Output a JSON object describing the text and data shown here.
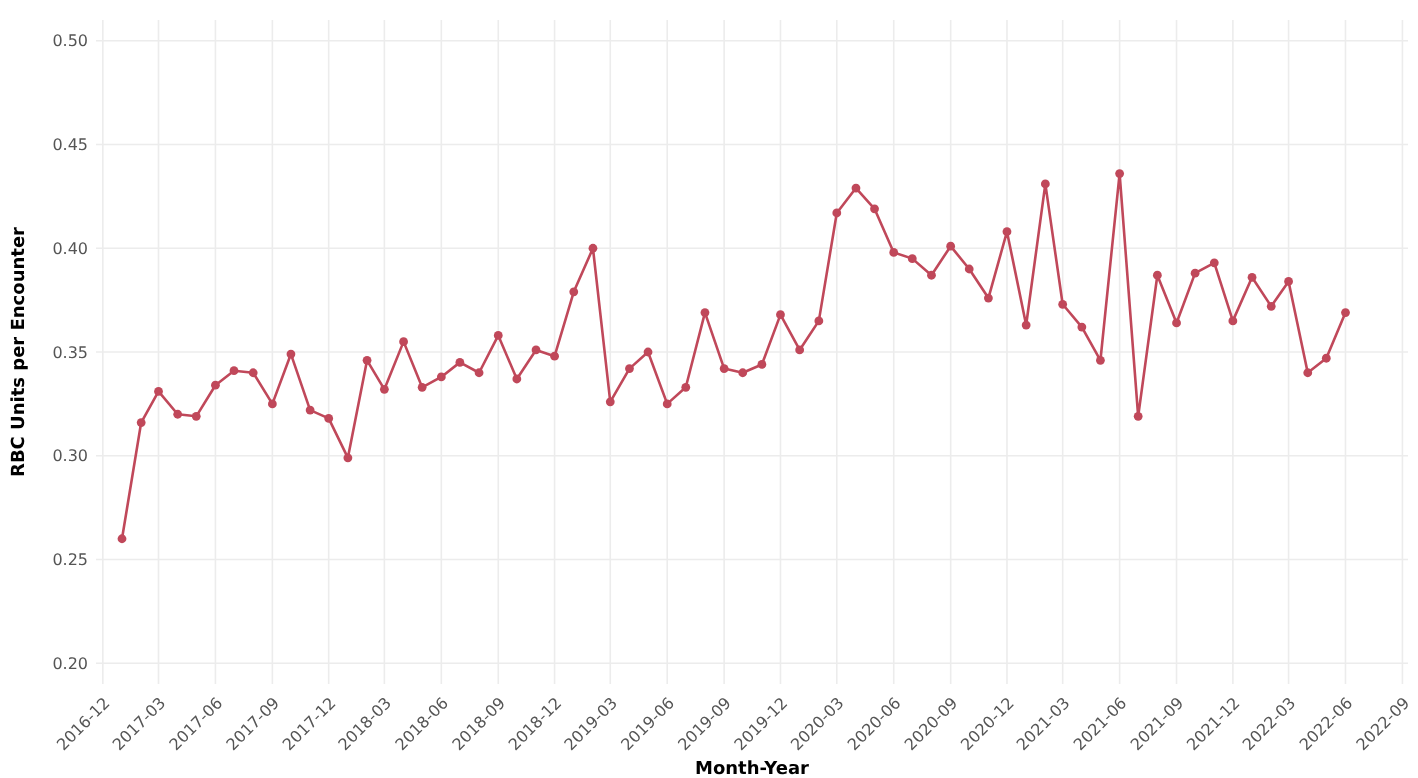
{
  "chart_data": {
    "type": "line",
    "xlabel": "Month-Year",
    "ylabel": "RBC Units per Encounter",
    "x": [
      "2017-01",
      "2017-02",
      "2017-03",
      "2017-04",
      "2017-05",
      "2017-06",
      "2017-07",
      "2017-08",
      "2017-09",
      "2017-10",
      "2017-11",
      "2017-12",
      "2018-01",
      "2018-02",
      "2018-03",
      "2018-04",
      "2018-05",
      "2018-06",
      "2018-07",
      "2018-08",
      "2018-09",
      "2018-10",
      "2018-11",
      "2018-12",
      "2019-01",
      "2019-02",
      "2019-03",
      "2019-04",
      "2019-05",
      "2019-06",
      "2019-07",
      "2019-08",
      "2019-09",
      "2019-10",
      "2019-11",
      "2019-12",
      "2020-01",
      "2020-02",
      "2020-03",
      "2020-04",
      "2020-05",
      "2020-06",
      "2020-07",
      "2020-08",
      "2020-09",
      "2020-10",
      "2020-11",
      "2020-12",
      "2021-01",
      "2021-02",
      "2021-03",
      "2021-04",
      "2021-05",
      "2021-06",
      "2021-07",
      "2021-08",
      "2021-09",
      "2021-10",
      "2021-11",
      "2021-12",
      "2022-01",
      "2022-02",
      "2022-03",
      "2022-04",
      "2022-05",
      "2022-06"
    ],
    "series": [
      {
        "color": "#c0485a",
        "values": [
          0.26,
          0.316,
          0.331,
          0.32,
          0.319,
          0.334,
          0.341,
          0.34,
          0.325,
          0.349,
          0.322,
          0.318,
          0.299,
          0.346,
          0.332,
          0.355,
          0.333,
          0.338,
          0.345,
          0.34,
          0.358,
          0.337,
          0.351,
          0.348,
          0.379,
          0.4,
          0.326,
          0.342,
          0.35,
          0.325,
          0.333,
          0.369,
          0.342,
          0.34,
          0.344,
          0.368,
          0.351,
          0.365,
          0.417,
          0.429,
          0.419,
          0.398,
          0.395,
          0.387,
          0.401,
          0.39,
          0.376,
          0.408,
          0.363,
          0.431,
          0.373,
          0.362,
          0.346,
          0.436,
          0.319,
          0.387,
          0.364,
          0.388,
          0.393,
          0.365,
          0.386,
          0.372,
          0.384,
          0.34,
          0.347,
          0.369
        ]
      }
    ],
    "xlim": [
      "2016-11-20",
      "2022-09-10"
    ],
    "xticks": [
      {
        "value": "2016-12",
        "label": "2016-12"
      },
      {
        "value": "2017-03",
        "label": "2017-03"
      },
      {
        "value": "2017-06",
        "label": "2017-06"
      },
      {
        "value": "2017-09",
        "label": "2017-09"
      },
      {
        "value": "2017-12",
        "label": "2017-12"
      },
      {
        "value": "2018-03",
        "label": "2018-03"
      },
      {
        "value": "2018-06",
        "label": "2018-06"
      },
      {
        "value": "2018-09",
        "label": "2018-09"
      },
      {
        "value": "2018-12",
        "label": "2018-12"
      },
      {
        "value": "2019-03",
        "label": "2019-03"
      },
      {
        "value": "2019-06",
        "label": "2019-06"
      },
      {
        "value": "2019-09",
        "label": "2019-09"
      },
      {
        "value": "2019-12",
        "label": "2019-12"
      },
      {
        "value": "2020-03",
        "label": "2020-03"
      },
      {
        "value": "2020-06",
        "label": "2020-06"
      },
      {
        "value": "2020-09",
        "label": "2020-09"
      },
      {
        "value": "2020-12",
        "label": "2020-12"
      },
      {
        "value": "2021-03",
        "label": "2021-03"
      },
      {
        "value": "2021-06",
        "label": "2021-06"
      },
      {
        "value": "2021-09",
        "label": "2021-09"
      },
      {
        "value": "2021-12",
        "label": "2021-12"
      },
      {
        "value": "2022-03",
        "label": "2022-03"
      },
      {
        "value": "2022-06",
        "label": "2022-06"
      },
      {
        "value": "2022-09",
        "label": "2022-09"
      }
    ],
    "ylim": [
      0.19,
      0.51
    ],
    "yticks": [
      {
        "value": 0.2,
        "label": "0.20"
      },
      {
        "value": 0.25,
        "label": "0.25"
      },
      {
        "value": 0.3,
        "label": "0.30"
      },
      {
        "value": 0.35,
        "label": "0.35"
      },
      {
        "value": 0.4,
        "label": "0.40"
      },
      {
        "value": 0.45,
        "label": "0.45"
      },
      {
        "value": 0.5,
        "label": "0.50"
      }
    ],
    "grid": true,
    "marker": "circle",
    "line_style": "solid"
  }
}
